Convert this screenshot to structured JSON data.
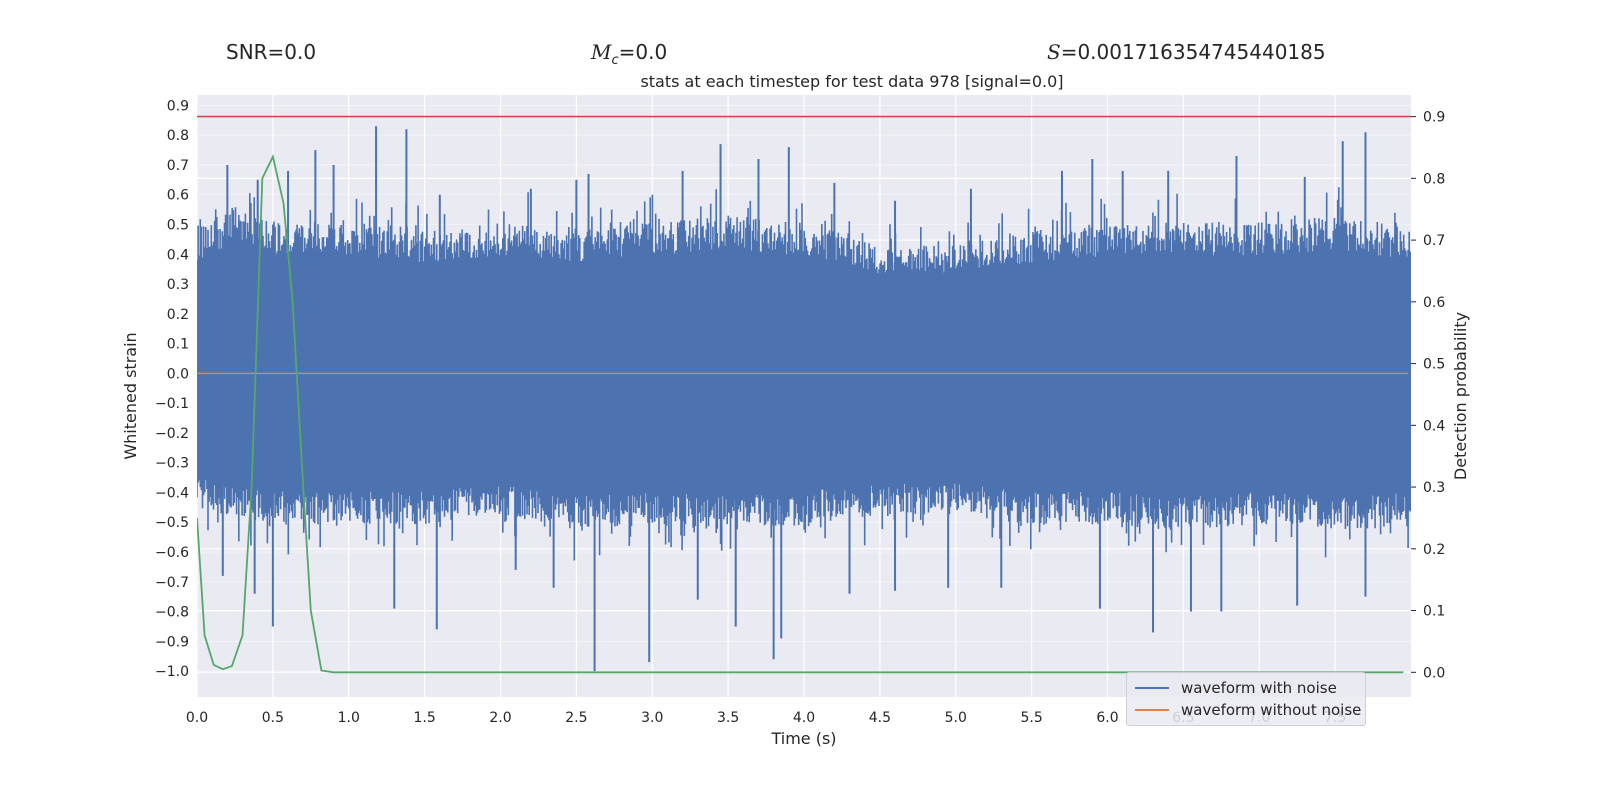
{
  "header": {
    "snr_label": "SNR=0.0",
    "mc_symbol": "M",
    "mc_sub": "c",
    "mc_value": "=0.0",
    "s_symbol": "S",
    "s_value": "=0.001716354745440185"
  },
  "colors": {
    "plot_bg": "#EAEAF2",
    "grid": "#FFFFFF",
    "noisy": "#4C72B0",
    "clean": "#DD8452",
    "threshold": "#C44E52",
    "probability": "#55A868"
  },
  "chart_data": {
    "type": "line",
    "title": "stats at each timestep for test data 978 [signal=0.0]",
    "xlabel": "Time (s)",
    "ylabel": "Whitened strain",
    "y2label": "Detection probability",
    "xlim": [
      0.0,
      8.0
    ],
    "ylim": [
      -1.087,
      0.935
    ],
    "y2lim": [
      -0.04,
      0.935
    ],
    "xticks": [
      "0.0",
      "0.5",
      "1.0",
      "1.5",
      "2.0",
      "2.5",
      "3.0",
      "3.5",
      "4.0",
      "4.5",
      "5.0",
      "5.5",
      "6.0",
      "6.5",
      "7.0",
      "7.5"
    ],
    "yticks": [
      "0.9",
      "0.8",
      "0.7",
      "0.6",
      "0.5",
      "0.4",
      "0.3",
      "0.2",
      "0.1",
      "0.0",
      "-0.1",
      "-0.2",
      "-0.3",
      "-0.4",
      "-0.5",
      "-0.6",
      "-0.7",
      "-0.8",
      "-0.9",
      "-1.0"
    ],
    "y2ticks": [
      "0.9",
      "0.8",
      "0.7",
      "0.6",
      "0.5",
      "0.4",
      "0.3",
      "0.2",
      "0.1",
      "0.0"
    ],
    "grid": true,
    "legend_position": "bottom-right",
    "series": [
      {
        "name": "waveform with noise",
        "axis": "left",
        "style": "dense noise trace",
        "envelope_top": [
          [
            0.0,
            0.43
          ],
          [
            0.25,
            0.5
          ],
          [
            0.5,
            0.45
          ],
          [
            1.0,
            0.45
          ],
          [
            1.5,
            0.42
          ],
          [
            2.0,
            0.45
          ],
          [
            2.5,
            0.42
          ],
          [
            3.0,
            0.45
          ],
          [
            3.5,
            0.47
          ],
          [
            4.0,
            0.45
          ],
          [
            4.5,
            0.38
          ],
          [
            5.0,
            0.38
          ],
          [
            5.5,
            0.42
          ],
          [
            6.0,
            0.44
          ],
          [
            6.5,
            0.45
          ],
          [
            7.0,
            0.45
          ],
          [
            7.5,
            0.47
          ],
          [
            8.0,
            0.43
          ]
        ],
        "envelope_bottom": [
          [
            0.0,
            -0.4
          ],
          [
            0.5,
            -0.45
          ],
          [
            1.0,
            -0.45
          ],
          [
            1.5,
            -0.45
          ],
          [
            2.0,
            -0.42
          ],
          [
            2.5,
            -0.47
          ],
          [
            3.0,
            -0.45
          ],
          [
            3.5,
            -0.47
          ],
          [
            4.0,
            -0.45
          ],
          [
            4.5,
            -0.42
          ],
          [
            5.0,
            -0.42
          ],
          [
            5.5,
            -0.45
          ],
          [
            6.0,
            -0.45
          ],
          [
            6.5,
            -0.47
          ],
          [
            7.0,
            -0.45
          ],
          [
            7.5,
            -0.47
          ],
          [
            8.0,
            -0.45
          ]
        ],
        "peaks": [
          {
            "x": 0.2,
            "y": 0.7
          },
          {
            "x": 0.4,
            "y": 0.65
          },
          {
            "x": 0.6,
            "y": 0.68
          },
          {
            "x": 0.78,
            "y": 0.75
          },
          {
            "x": 0.9,
            "y": 0.7
          },
          {
            "x": 1.18,
            "y": 0.83
          },
          {
            "x": 1.38,
            "y": 0.82
          },
          {
            "x": 1.6,
            "y": 0.6
          },
          {
            "x": 2.2,
            "y": 0.62
          },
          {
            "x": 2.5,
            "y": 0.65
          },
          {
            "x": 2.58,
            "y": 0.67
          },
          {
            "x": 3.2,
            "y": 0.68
          },
          {
            "x": 3.45,
            "y": 0.77
          },
          {
            "x": 3.7,
            "y": 0.72
          },
          {
            "x": 3.9,
            "y": 0.76
          },
          {
            "x": 4.2,
            "y": 0.64
          },
          {
            "x": 4.6,
            "y": 0.58
          },
          {
            "x": 5.1,
            "y": 0.62
          },
          {
            "x": 5.7,
            "y": 0.68
          },
          {
            "x": 5.9,
            "y": 0.72
          },
          {
            "x": 6.1,
            "y": 0.68
          },
          {
            "x": 6.4,
            "y": 0.68
          },
          {
            "x": 6.85,
            "y": 0.73
          },
          {
            "x": 7.3,
            "y": 0.66
          },
          {
            "x": 7.55,
            "y": 0.78
          },
          {
            "x": 7.7,
            "y": 0.81
          },
          {
            "x": 0.17,
            "y": -0.68
          },
          {
            "x": 0.38,
            "y": -0.74
          },
          {
            "x": 0.5,
            "y": -0.85
          },
          {
            "x": 1.3,
            "y": -0.79
          },
          {
            "x": 1.58,
            "y": -0.86
          },
          {
            "x": 2.1,
            "y": -0.66
          },
          {
            "x": 2.35,
            "y": -0.72
          },
          {
            "x": 2.62,
            "y": -1.0
          },
          {
            "x": 2.98,
            "y": -0.97
          },
          {
            "x": 3.3,
            "y": -0.76
          },
          {
            "x": 3.55,
            "y": -0.85
          },
          {
            "x": 3.8,
            "y": -0.96
          },
          {
            "x": 3.85,
            "y": -0.89
          },
          {
            "x": 4.3,
            "y": -0.74
          },
          {
            "x": 4.6,
            "y": -0.73
          },
          {
            "x": 4.95,
            "y": -0.72
          },
          {
            "x": 5.3,
            "y": -0.72
          },
          {
            "x": 5.95,
            "y": -0.79
          },
          {
            "x": 6.3,
            "y": -0.87
          },
          {
            "x": 6.55,
            "y": -0.8
          },
          {
            "x": 6.75,
            "y": -0.8
          },
          {
            "x": 7.25,
            "y": -0.78
          },
          {
            "x": 7.7,
            "y": -0.75
          }
        ]
      },
      {
        "name": "waveform without noise",
        "axis": "left",
        "x": [
          0.0,
          7.98
        ],
        "values": [
          0.0,
          0.0
        ]
      },
      {
        "axis": "right",
        "x": [
          0.0,
          0.05,
          0.11,
          0.17,
          0.23,
          0.3,
          0.36,
          0.43,
          0.5,
          0.57,
          0.63,
          0.7,
          0.75,
          0.82,
          0.9,
          1.0,
          2.0,
          3.0,
          4.0,
          5.0,
          6.0,
          7.0,
          7.95
        ],
        "values": [
          0.25,
          0.06,
          0.012,
          0.005,
          0.01,
          0.06,
          0.3,
          0.8,
          0.835,
          0.76,
          0.6,
          0.3,
          0.1,
          0.003,
          0.0,
          0.0,
          0.0,
          0.0,
          0.0,
          0.0,
          0.0,
          0.0,
          0.0
        ]
      },
      {
        "axis": "right",
        "x": [
          0.0,
          8.0
        ],
        "values": [
          0.9,
          0.9
        ]
      }
    ]
  }
}
